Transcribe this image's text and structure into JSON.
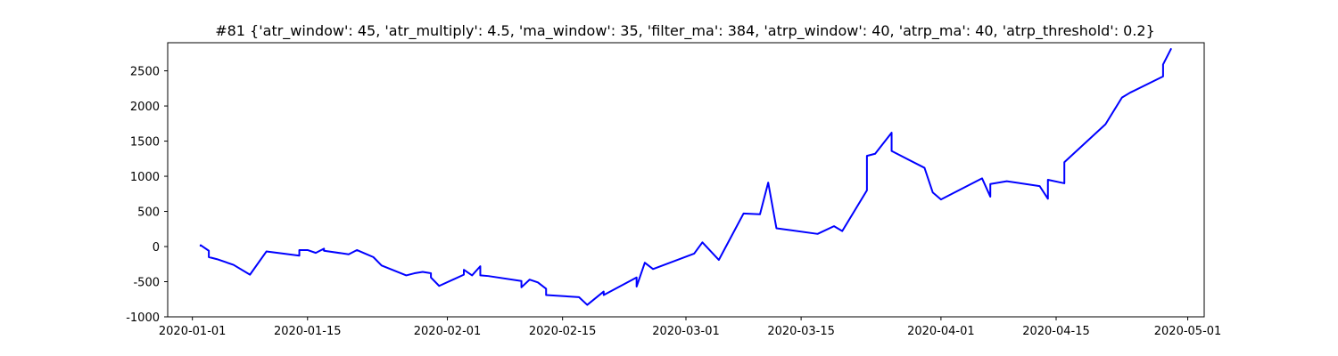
{
  "chart_data": {
    "type": "line",
    "title": "#81 {'atr_window': 45, 'atr_multiply': 4.5, 'ma_window': 35, 'filter_ma': 384, 'atrp_window': 40, 'atrp_ma': 40, 'atrp_threshold': 0.2}",
    "xlabel": "",
    "ylabel": "",
    "ylim": [
      -1000,
      2900
    ],
    "xlim": [
      "2019-12-29",
      "2020-05-03"
    ],
    "y_ticks": [
      -1000,
      -500,
      0,
      500,
      1000,
      1500,
      2000,
      2500
    ],
    "x_ticks": [
      "2020-01-01",
      "2020-01-15",
      "2020-02-01",
      "2020-02-15",
      "2020-03-01",
      "2020-03-15",
      "2020-04-01",
      "2020-04-15",
      "2020-05-01"
    ],
    "grid": false,
    "legend": "none",
    "series": [
      {
        "color": "#0000ff",
        "x": [
          "2020-01-02",
          "2020-01-02",
          "2020-01-03",
          "2020-01-03",
          "2020-01-04",
          "2020-01-06",
          "2020-01-08",
          "2020-01-10",
          "2020-01-14",
          "2020-01-14",
          "2020-01-15",
          "2020-01-16",
          "2020-01-17",
          "2020-01-17",
          "2020-01-20",
          "2020-01-21",
          "2020-01-22",
          "2020-01-23",
          "2020-01-24",
          "2020-01-27",
          "2020-01-28",
          "2020-01-29",
          "2020-01-30",
          "2020-01-30",
          "2020-01-31",
          "2020-02-03",
          "2020-02-03",
          "2020-02-04",
          "2020-02-05",
          "2020-02-05",
          "2020-02-06",
          "2020-02-10",
          "2020-02-10",
          "2020-02-11",
          "2020-02-12",
          "2020-02-13",
          "2020-02-13",
          "2020-02-17",
          "2020-02-18",
          "2020-02-20",
          "2020-02-20",
          "2020-02-24",
          "2020-02-24",
          "2020-02-25",
          "2020-02-26",
          "2020-03-02",
          "2020-03-03",
          "2020-03-05",
          "2020-03-08",
          "2020-03-10",
          "2020-03-11",
          "2020-03-12",
          "2020-03-17",
          "2020-03-19",
          "2020-03-20",
          "2020-03-23",
          "2020-03-23",
          "2020-03-24",
          "2020-03-26",
          "2020-03-26",
          "2020-03-30",
          "2020-03-31",
          "2020-04-01",
          "2020-04-03",
          "2020-04-06",
          "2020-04-07",
          "2020-04-07",
          "2020-04-09",
          "2020-04-13",
          "2020-04-14",
          "2020-04-14",
          "2020-04-16",
          "2020-04-16",
          "2020-04-21",
          "2020-04-23",
          "2020-04-24",
          "2020-04-28",
          "2020-04-28",
          "2020-04-29"
        ],
        "y": [
          0,
          20,
          -60,
          -150,
          -180,
          -260,
          -400,
          -70,
          -130,
          -50,
          -50,
          -90,
          -30,
          -60,
          -110,
          -50,
          -100,
          -150,
          -270,
          -410,
          -380,
          -360,
          -380,
          -440,
          -560,
          -400,
          -330,
          -410,
          -280,
          -410,
          -420,
          -490,
          -580,
          -470,
          -510,
          -600,
          -690,
          -720,
          -830,
          -640,
          -690,
          -440,
          -570,
          -230,
          -320,
          -100,
          60,
          -190,
          470,
          460,
          910,
          260,
          180,
          290,
          220,
          800,
          1290,
          1320,
          1620,
          1360,
          1120,
          770,
          670,
          790,
          970,
          710,
          890,
          930,
          860,
          680,
          950,
          900,
          1200,
          1740,
          2120,
          2190,
          2420,
          2590,
          2820
        ]
      }
    ]
  }
}
